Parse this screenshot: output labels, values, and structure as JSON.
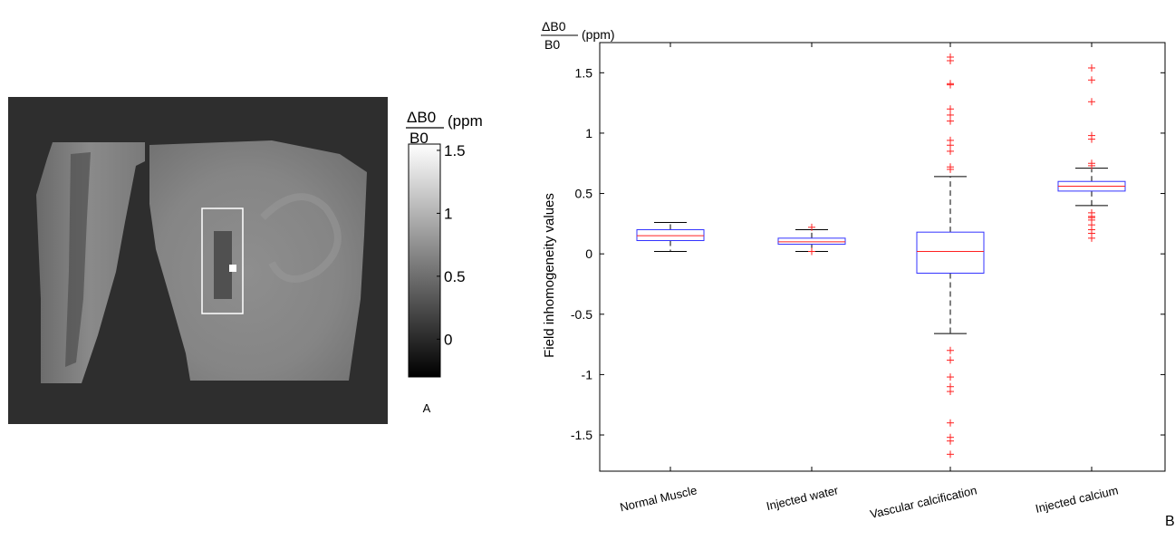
{
  "panel_a": {
    "label": "A",
    "colorbar": {
      "unit_numerator": "ΔB0",
      "unit_denominator": "B0",
      "unit_suffix": "(ppm",
      "ticks": [
        {
          "value": 1.5,
          "label": "1.5"
        },
        {
          "value": 1,
          "label": "1"
        },
        {
          "value": 0.5,
          "label": "0.5"
        },
        {
          "value": 0,
          "label": "0"
        }
      ],
      "range": [
        -0.3,
        1.55
      ]
    },
    "colors": {
      "background": "#2e2e2e",
      "roi_box": "#ffffff",
      "hot_spot": "#ffffff"
    }
  },
  "panel_b": {
    "label": "B",
    "unit_numerator": "ΔB0",
    "unit_denominator": "B0",
    "unit_suffix": "(ppm)",
    "colors": {
      "box": "#3333ff",
      "median": "#ff2020",
      "outlier": "#ff2020",
      "whisker": "#000000"
    }
  },
  "chart_data": {
    "type": "box",
    "title": "",
    "xlabel": "",
    "ylabel": "Field inhomogeneity values",
    "ylim": [
      -1.8,
      1.75
    ],
    "yticks": [
      {
        "value": 1.5,
        "label": "1.5"
      },
      {
        "value": 1,
        "label": "1"
      },
      {
        "value": 0.5,
        "label": "0.5"
      },
      {
        "value": 0,
        "label": "0"
      },
      {
        "value": -0.5,
        "label": "-0.5"
      },
      {
        "value": -1,
        "label": "-1"
      },
      {
        "value": -1.5,
        "label": "-1.5"
      }
    ],
    "categories": [
      "Normal Muscle",
      "Injected water",
      "Vascular calcification",
      "Injected calcium"
    ],
    "boxes": [
      {
        "category": "Normal Muscle",
        "whisker_low": 0.02,
        "q1": 0.11,
        "median": 0.15,
        "q3": 0.2,
        "whisker_high": 0.26,
        "outliers": []
      },
      {
        "category": "Injected water",
        "whisker_low": 0.02,
        "q1": 0.08,
        "median": 0.1,
        "q3": 0.13,
        "whisker_high": 0.2,
        "outliers": [
          0.02,
          0.22
        ]
      },
      {
        "category": "Vascular calcification",
        "whisker_low": -0.66,
        "q1": -0.16,
        "median": 0.02,
        "q3": 0.18,
        "whisker_high": 0.64,
        "outliers": [
          1.63,
          1.6,
          1.41,
          1.4,
          1.2,
          1.15,
          1.1,
          0.94,
          0.9,
          0.85,
          0.72,
          0.7,
          -0.8,
          -0.88,
          -1.02,
          -1.1,
          -1.14,
          -1.4,
          -1.52,
          -1.55,
          -1.66
        ]
      },
      {
        "category": "Injected calcium",
        "whisker_low": 0.4,
        "q1": 0.52,
        "median": 0.56,
        "q3": 0.6,
        "whisker_high": 0.71,
        "outliers": [
          1.54,
          1.44,
          1.26,
          0.98,
          0.95,
          0.75,
          0.73,
          0.34,
          0.31,
          0.3,
          0.28,
          0.24,
          0.2,
          0.17,
          0.13
        ]
      }
    ]
  }
}
